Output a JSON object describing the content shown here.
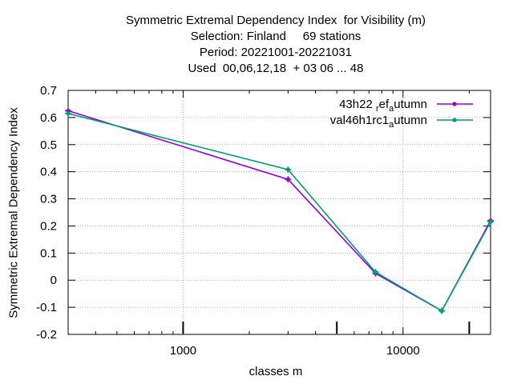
{
  "title_lines": [
    "Symmetric Extremal Dependency Index  for Visibility (m)",
    "Selection: Finland     69 stations",
    "Period: 20221001-20221031",
    "Used  00,06,12,18  + 03 06 ... 48"
  ],
  "colors": {
    "series_1": "#9400d3",
    "series_2": "#009e73",
    "grid": "#a0a0a0",
    "axis": "#000000"
  },
  "chart_data": {
    "type": "line",
    "title": "Symmetric Extremal Dependency Index  for Visibility (m)",
    "subtitle": [
      "Selection: Finland     69 stations",
      "Period: 20221001-20221031",
      "Used  00,06,12,18  + 03 06 ... 48"
    ],
    "xlabel": "classes m",
    "ylabel": "Symmetric Extremal Dependency Index",
    "x_scale": "log",
    "xlim": [
      300,
      25000
    ],
    "ylim": [
      -0.2,
      0.7
    ],
    "x_ticks": [
      1000,
      10000
    ],
    "x_tick_labels": [
      "1000",
      "10000"
    ],
    "y_ticks": [
      -0.2,
      -0.1,
      0,
      0.1,
      0.2,
      0.3,
      0.4,
      0.5,
      0.6,
      0.7
    ],
    "y_tick_labels": [
      "-0.2",
      "-0.1",
      "0",
      "0.1",
      "0.2",
      "0.3",
      "0.4",
      "0.5",
      "0.6",
      "0.7"
    ],
    "extra_tick_marks": [
      1000,
      5000,
      20000
    ],
    "grid": true,
    "legend_position": "top-right",
    "series": [
      {
        "name": "43h22_ref_autumn",
        "legend_parts": [
          "43h22 ",
          "r",
          "ef",
          "a",
          "utumn"
        ],
        "color_key": "series_1",
        "x": [
          300,
          3000,
          7500,
          15000,
          25000
        ],
        "y": [
          0.625,
          0.372,
          0.025,
          -0.113,
          0.22
        ]
      },
      {
        "name": "val46h1rc1_autumn",
        "legend_parts": [
          "val46h1rc1",
          "a",
          "utumn"
        ],
        "color_key": "series_2",
        "x": [
          300,
          3000,
          7500,
          15000,
          25000
        ],
        "y": [
          0.615,
          0.408,
          0.03,
          -0.113,
          0.215
        ]
      }
    ]
  }
}
